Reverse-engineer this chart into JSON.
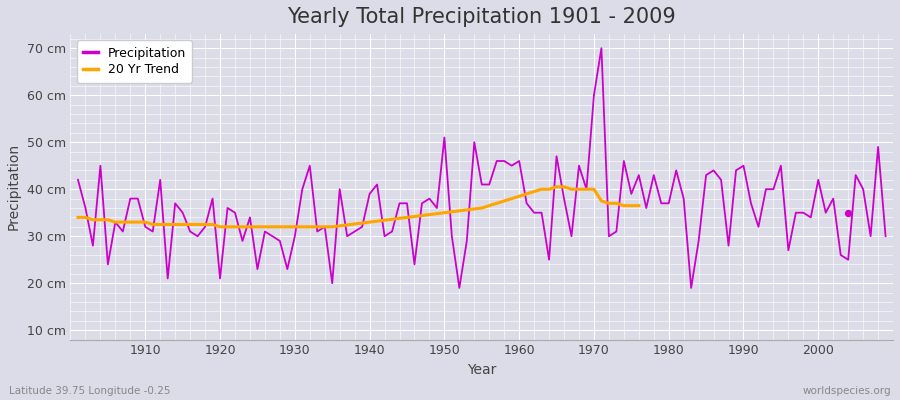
{
  "title": "Yearly Total Precipitation 1901 - 2009",
  "xlabel": "Year",
  "ylabel": "Precipitation",
  "subtitle": "Latitude 39.75 Longitude -0.25",
  "watermark": "worldspecies.org",
  "bg_outer": "#dcdce8",
  "bg_inner": "#dcdce8",
  "grid_color": "#ffffff",
  "precip_color": "#cc00cc",
  "trend_color": "#ffa500",
  "ylim": [
    8,
    73
  ],
  "yticks": [
    10,
    20,
    30,
    40,
    50,
    60,
    70
  ],
  "ytick_labels": [
    "10 cm",
    "20 cm",
    "30 cm",
    "40 cm",
    "50 cm",
    "60 cm",
    "70 cm"
  ],
  "xlim": [
    1900,
    2010
  ],
  "xtick_positions": [
    1910,
    1920,
    1930,
    1940,
    1950,
    1960,
    1970,
    1980,
    1990,
    2000
  ],
  "years": [
    1901,
    1902,
    1903,
    1904,
    1905,
    1906,
    1907,
    1908,
    1909,
    1910,
    1911,
    1912,
    1913,
    1914,
    1915,
    1916,
    1917,
    1918,
    1919,
    1920,
    1921,
    1922,
    1923,
    1924,
    1925,
    1926,
    1927,
    1928,
    1929,
    1930,
    1931,
    1932,
    1933,
    1934,
    1935,
    1936,
    1937,
    1938,
    1939,
    1940,
    1941,
    1942,
    1943,
    1944,
    1945,
    1946,
    1947,
    1948,
    1949,
    1950,
    1951,
    1952,
    1953,
    1954,
    1955,
    1956,
    1957,
    1958,
    1959,
    1960,
    1961,
    1962,
    1963,
    1964,
    1965,
    1966,
    1967,
    1968,
    1969,
    1970,
    1971,
    1972,
    1973,
    1974,
    1975,
    1976,
    1977,
    1978,
    1979,
    1980,
    1981,
    1982,
    1983,
    1984,
    1985,
    1986,
    1987,
    1988,
    1989,
    1990,
    1991,
    1992,
    1993,
    1994,
    1995,
    1996,
    1997,
    1998,
    1999,
    2000,
    2001,
    2002,
    2003,
    2004,
    2005,
    2006,
    2007,
    2008,
    2009
  ],
  "precip": [
    42,
    36,
    28,
    45,
    24,
    33,
    31,
    38,
    38,
    32,
    31,
    42,
    21,
    37,
    35,
    31,
    30,
    32,
    38,
    21,
    36,
    35,
    29,
    34,
    23,
    31,
    30,
    29,
    23,
    30,
    40,
    45,
    31,
    32,
    20,
    40,
    30,
    31,
    32,
    39,
    41,
    30,
    31,
    37,
    37,
    24,
    37,
    38,
    36,
    51,
    30,
    19,
    29,
    50,
    41,
    41,
    46,
    46,
    45,
    46,
    37,
    35,
    35,
    25,
    47,
    38,
    30,
    45,
    40,
    60,
    70,
    30,
    31,
    46,
    39,
    43,
    36,
    43,
    37,
    37,
    44,
    38,
    19,
    29,
    43,
    44,
    42,
    28,
    44,
    45,
    37,
    32,
    40,
    40,
    45,
    27,
    35,
    35,
    34,
    42,
    35,
    38,
    26,
    25,
    43,
    40,
    30,
    49,
    30
  ],
  "trend_years": [
    1901,
    1902,
    1903,
    1904,
    1905,
    1906,
    1907,
    1908,
    1909,
    1910,
    1911,
    1912,
    1913,
    1914,
    1915,
    1916,
    1917,
    1918,
    1919,
    1920,
    1921,
    1922,
    1923,
    1924,
    1925,
    1926,
    1927,
    1928,
    1929,
    1930,
    1931,
    1932,
    1933,
    1934,
    1935,
    1955,
    1956,
    1957,
    1958,
    1959,
    1960,
    1961,
    1962,
    1963,
    1964,
    1965,
    1966,
    1967,
    1968,
    1969,
    1970,
    1971,
    1972,
    1973,
    1974,
    1975,
    1976
  ],
  "trend_vals": [
    34.0,
    34.0,
    33.5,
    33.5,
    33.5,
    33.0,
    33.0,
    33.0,
    33.0,
    33.0,
    32.5,
    32.5,
    32.5,
    32.5,
    32.5,
    32.5,
    32.5,
    32.5,
    32.5,
    32.0,
    32.0,
    32.0,
    32.0,
    32.0,
    32.0,
    32.0,
    32.0,
    32.0,
    32.0,
    32.0,
    32.0,
    32.0,
    32.0,
    32.0,
    32.0,
    36.0,
    36.5,
    37.0,
    37.5,
    38.0,
    38.5,
    39.0,
    39.5,
    40.0,
    40.0,
    40.5,
    40.5,
    40.0,
    40.0,
    40.0,
    40.0,
    37.5,
    37.0,
    37.0,
    36.5,
    36.5,
    36.5
  ],
  "dot_x": 2004,
  "dot_y": 35,
  "title_fontsize": 15,
  "axis_label_fontsize": 10,
  "tick_fontsize": 9,
  "legend_fontsize": 9
}
